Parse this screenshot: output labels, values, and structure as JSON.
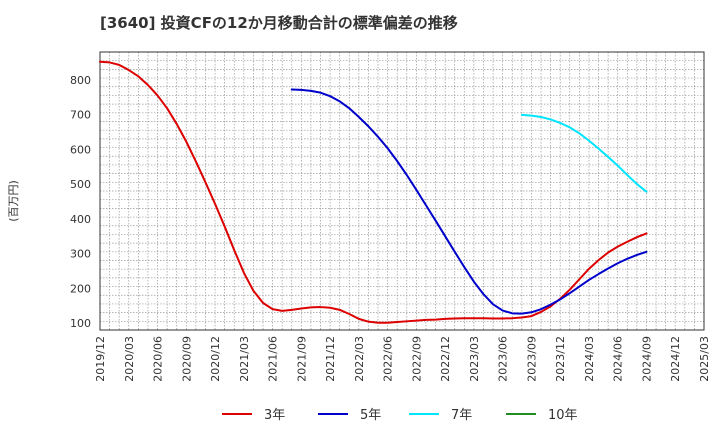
{
  "title": "[3640]  投資CFの12か月移動合計の標準偏差の推移",
  "chart_data": {
    "type": "line",
    "title": "[3640]  投資CFの12か月移動合計の標準偏差の推移",
    "ylabel": "(百万円)",
    "xlabel": "",
    "ylim": [
      80,
      880
    ],
    "yticks": [
      100,
      200,
      300,
      400,
      500,
      600,
      700,
      800
    ],
    "x_start": "2019/12",
    "x_end": "2025/03",
    "xticks": [
      "2019/12",
      "2020/03",
      "2020/06",
      "2020/09",
      "2020/12",
      "2021/03",
      "2021/06",
      "2021/09",
      "2021/12",
      "2022/03",
      "2022/06",
      "2022/09",
      "2022/12",
      "2023/03",
      "2023/06",
      "2023/09",
      "2023/12",
      "2024/03",
      "2024/06",
      "2024/09",
      "2024/12",
      "2025/03"
    ],
    "grid": true,
    "legend_position": "bottom",
    "series": [
      {
        "name": "3年",
        "color": "#dd0000",
        "points": [
          [
            "2019/12",
            852
          ],
          [
            "2020/01",
            850
          ],
          [
            "2020/02",
            843
          ],
          [
            "2020/03",
            828
          ],
          [
            "2020/04",
            810
          ],
          [
            "2020/05",
            785
          ],
          [
            "2020/06",
            755
          ],
          [
            "2020/07",
            718
          ],
          [
            "2020/08",
            673
          ],
          [
            "2020/09",
            622
          ],
          [
            "2020/10",
            565
          ],
          [
            "2020/11",
            505
          ],
          [
            "2020/12",
            443
          ],
          [
            "2021/01",
            378
          ],
          [
            "2021/02",
            310
          ],
          [
            "2021/03",
            245
          ],
          [
            "2021/04",
            193
          ],
          [
            "2021/05",
            158
          ],
          [
            "2021/06",
            140
          ],
          [
            "2021/07",
            135
          ],
          [
            "2021/08",
            138
          ],
          [
            "2021/09",
            142
          ],
          [
            "2021/10",
            145
          ],
          [
            "2021/11",
            146
          ],
          [
            "2021/12",
            144
          ],
          [
            "2022/01",
            138
          ],
          [
            "2022/02",
            126
          ],
          [
            "2022/03",
            112
          ],
          [
            "2022/04",
            104
          ],
          [
            "2022/05",
            101
          ],
          [
            "2022/06",
            101
          ],
          [
            "2022/07",
            103
          ],
          [
            "2022/08",
            105
          ],
          [
            "2022/09",
            107
          ],
          [
            "2022/10",
            109
          ],
          [
            "2022/11",
            110
          ],
          [
            "2022/12",
            112
          ],
          [
            "2023/01",
            113
          ],
          [
            "2023/02",
            114
          ],
          [
            "2023/03",
            114
          ],
          [
            "2023/04",
            114
          ],
          [
            "2023/05",
            113
          ],
          [
            "2023/06",
            113
          ],
          [
            "2023/07",
            114
          ],
          [
            "2023/08",
            116
          ],
          [
            "2023/09",
            120
          ],
          [
            "2023/10",
            132
          ],
          [
            "2023/11",
            148
          ],
          [
            "2023/12",
            170
          ],
          [
            "2024/01",
            196
          ],
          [
            "2024/02",
            226
          ],
          [
            "2024/03",
            256
          ],
          [
            "2024/04",
            281
          ],
          [
            "2024/05",
            303
          ],
          [
            "2024/06",
            320
          ],
          [
            "2024/07",
            334
          ],
          [
            "2024/08",
            347
          ],
          [
            "2024/09",
            358
          ]
        ]
      },
      {
        "name": "5年",
        "color": "#0000cc",
        "points": [
          [
            "2021/08",
            772
          ],
          [
            "2021/09",
            771
          ],
          [
            "2021/10",
            768
          ],
          [
            "2021/11",
            763
          ],
          [
            "2021/12",
            753
          ],
          [
            "2022/01",
            738
          ],
          [
            "2022/02",
            718
          ],
          [
            "2022/03",
            693
          ],
          [
            "2022/04",
            666
          ],
          [
            "2022/05",
            636
          ],
          [
            "2022/06",
            603
          ],
          [
            "2022/07",
            566
          ],
          [
            "2022/08",
            526
          ],
          [
            "2022/09",
            483
          ],
          [
            "2022/10",
            439
          ],
          [
            "2022/11",
            395
          ],
          [
            "2022/12",
            350
          ],
          [
            "2023/01",
            305
          ],
          [
            "2023/02",
            261
          ],
          [
            "2023/03",
            219
          ],
          [
            "2023/04",
            183
          ],
          [
            "2023/05",
            154
          ],
          [
            "2023/06",
            136
          ],
          [
            "2023/07",
            128
          ],
          [
            "2023/08",
            127
          ],
          [
            "2023/09",
            131
          ],
          [
            "2023/10",
            140
          ],
          [
            "2023/11",
            153
          ],
          [
            "2023/12",
            168
          ],
          [
            "2024/01",
            186
          ],
          [
            "2024/02",
            205
          ],
          [
            "2024/03",
            224
          ],
          [
            "2024/04",
            241
          ],
          [
            "2024/05",
            257
          ],
          [
            "2024/06",
            272
          ],
          [
            "2024/07",
            285
          ],
          [
            "2024/08",
            296
          ],
          [
            "2024/09",
            305
          ]
        ]
      },
      {
        "name": "7年",
        "color": "#00e5ff",
        "points": [
          [
            "2023/08",
            699
          ],
          [
            "2023/09",
            697
          ],
          [
            "2023/10",
            693
          ],
          [
            "2023/11",
            686
          ],
          [
            "2023/12",
            676
          ],
          [
            "2024/01",
            663
          ],
          [
            "2024/02",
            646
          ],
          [
            "2024/03",
            625
          ],
          [
            "2024/04",
            602
          ],
          [
            "2024/05",
            578
          ],
          [
            "2024/06",
            553
          ],
          [
            "2024/07",
            526
          ],
          [
            "2024/08",
            500
          ],
          [
            "2024/09",
            478
          ]
        ]
      },
      {
        "name": "10年",
        "color": "#228b22",
        "points": []
      }
    ]
  }
}
